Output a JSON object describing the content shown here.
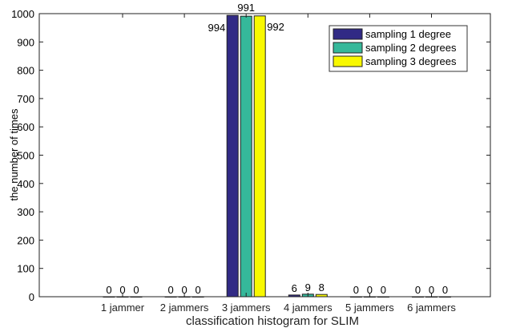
{
  "chart_data": {
    "type": "bar",
    "title": "",
    "xlabel": "classification histogram for SLIM",
    "ylabel": "the number of times",
    "ylim": [
      0,
      1000
    ],
    "yticks": [
      0,
      100,
      200,
      300,
      400,
      500,
      600,
      700,
      800,
      900,
      1000
    ],
    "categories": [
      "1 jammer",
      "2 jammers",
      "3 jammers",
      "4 jammers",
      "5 jammers",
      "6 jammers"
    ],
    "series": [
      {
        "name": "sampling 1 degree",
        "color": "#312a85",
        "values": [
          0,
          0,
          994,
          6,
          0,
          0
        ]
      },
      {
        "name": "sampling 2 degrees",
        "color": "#35b89a",
        "values": [
          0,
          0,
          991,
          9,
          0,
          0
        ]
      },
      {
        "name": "sampling 3 degrees",
        "color": "#f8f800",
        "values": [
          0,
          0,
          992,
          8,
          0,
          0
        ]
      }
    ],
    "legend_position": "top-right",
    "grid": false
  }
}
